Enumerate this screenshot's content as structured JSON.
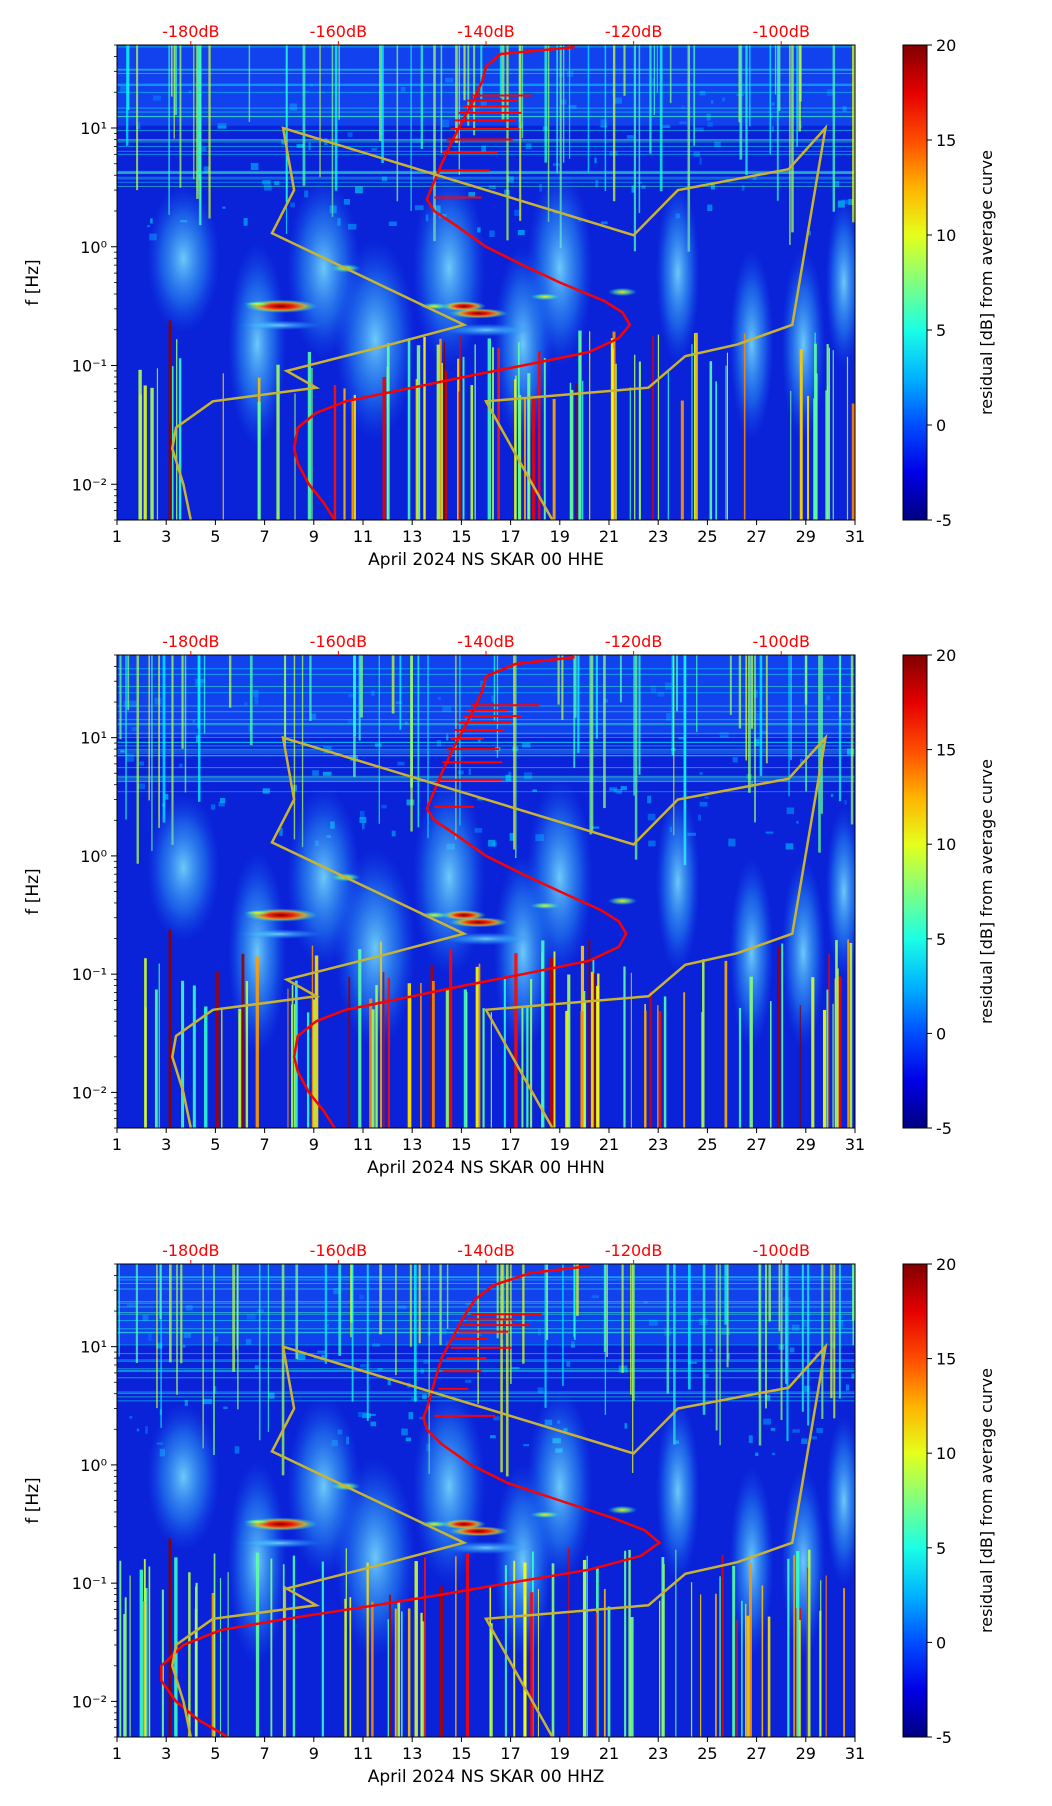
{
  "chart_data": [
    {
      "type": "heatmap",
      "panel": "top",
      "title": "",
      "xlabel": "April 2024 NS SKAR 00 HHE",
      "ylabel": "f [Hz]",
      "x_ticks": [
        1,
        3,
        5,
        7,
        9,
        11,
        13,
        15,
        17,
        19,
        21,
        23,
        25,
        27,
        29,
        31
      ],
      "x_range": [
        1,
        31
      ],
      "y_scale": "log",
      "y_range": [
        0.005,
        50
      ],
      "y_ticks": [
        {
          "value": 0.01,
          "label": "10⁻²"
        },
        {
          "value": 0.1,
          "label": "10⁻¹"
        },
        {
          "value": 1,
          "label": "10⁰"
        },
        {
          "value": 10,
          "label": "10¹"
        }
      ],
      "top_axis": {
        "color": "#ff0000",
        "range_db": [
          -190,
          -90
        ],
        "ticks": [
          {
            "value": -180,
            "label": "-180dB"
          },
          {
            "value": -160,
            "label": "-160dB"
          },
          {
            "value": -140,
            "label": "-140dB"
          },
          {
            "value": -120,
            "label": "-120dB"
          },
          {
            "value": -100,
            "label": "-100dB"
          }
        ]
      },
      "colorbar": {
        "label": "residual [dB] from average curve",
        "range": [
          -5,
          20
        ],
        "ticks": [
          -5,
          0,
          5,
          10,
          15,
          20
        ],
        "colormap": "jet"
      },
      "series": [
        {
          "name": "average PSD curve",
          "color": "#ff0000",
          "units": "dB",
          "points": [
            {
              "f": 0.005,
              "db": -160.5
            },
            {
              "f": 0.007,
              "db": -162
            },
            {
              "f": 0.01,
              "db": -164
            },
            {
              "f": 0.015,
              "db": -165.5
            },
            {
              "f": 0.02,
              "db": -166
            },
            {
              "f": 0.03,
              "db": -165.5
            },
            {
              "f": 0.04,
              "db": -163
            },
            {
              "f": 0.05,
              "db": -159
            },
            {
              "f": 0.065,
              "db": -150
            },
            {
              "f": 0.08,
              "db": -143
            },
            {
              "f": 0.1,
              "db": -135
            },
            {
              "f": 0.13,
              "db": -126
            },
            {
              "f": 0.17,
              "db": -122
            },
            {
              "f": 0.22,
              "db": -120.5
            },
            {
              "f": 0.28,
              "db": -121.5
            },
            {
              "f": 0.35,
              "db": -124
            },
            {
              "f": 0.5,
              "db": -130
            },
            {
              "f": 0.7,
              "db": -135
            },
            {
              "f": 1.0,
              "db": -140
            },
            {
              "f": 1.5,
              "db": -144
            },
            {
              "f": 2.0,
              "db": -147
            },
            {
              "f": 2.5,
              "db": -148
            },
            {
              "f": 3.0,
              "db": -147.5
            },
            {
              "f": 5.0,
              "db": -146
            },
            {
              "f": 8.0,
              "db": -144.5
            },
            {
              "f": 12,
              "db": -143
            },
            {
              "f": 18,
              "db": -141.5
            },
            {
              "f": 25,
              "db": -140.5
            },
            {
              "f": 33,
              "db": -140
            },
            {
              "f": 42,
              "db": -138
            },
            {
              "f": 48,
              "db": -128
            }
          ]
        },
        {
          "name": "NLNM / NHNM envelope",
          "color": "#c8b432",
          "units": "dB",
          "points": [
            {
              "f": 0.005,
              "db": -180
            },
            {
              "f": 0.01,
              "db": -181
            },
            {
              "f": 0.02,
              "db": -182.5
            },
            {
              "f": 0.03,
              "db": -182
            },
            {
              "f": 0.05,
              "db": -177
            },
            {
              "f": 0.065,
              "db": -163
            },
            {
              "f": 0.09,
              "db": -167
            },
            {
              "f": 0.15,
              "db": -153
            },
            {
              "f": 0.22,
              "db": -143
            },
            {
              "f": 0.5,
              "db": -155
            },
            {
              "f": 1.3,
              "db": -169
            },
            {
              "f": 3,
              "db": -166
            },
            {
              "f": 10,
              "db": -167.5
            },
            {
              "f": 1.25,
              "db": -120
            },
            {
              "f": 3,
              "db": -114
            },
            {
              "f": 4.5,
              "db": -99
            },
            {
              "f": 10,
              "db": -94
            },
            {
              "f": 0.22,
              "db": -98.5
            },
            {
              "f": 0.15,
              "db": -106
            },
            {
              "f": 0.12,
              "db": -113
            },
            {
              "f": 0.065,
              "db": -118
            },
            {
              "f": 0.05,
              "db": -140
            },
            {
              "f": 0.005,
              "db": -131
            }
          ]
        }
      ]
    },
    {
      "type": "heatmap",
      "panel": "middle",
      "title": "",
      "xlabel": "April 2024 NS SKAR 00 HHN",
      "ylabel": "f [Hz]",
      "x_ticks": [
        1,
        3,
        5,
        7,
        9,
        11,
        13,
        15,
        17,
        19,
        21,
        23,
        25,
        27,
        29,
        31
      ],
      "x_range": [
        1,
        31
      ],
      "y_scale": "log",
      "y_range": [
        0.005,
        50
      ],
      "y_ticks": [
        {
          "value": 0.01,
          "label": "10⁻²"
        },
        {
          "value": 0.1,
          "label": "10⁻¹"
        },
        {
          "value": 1,
          "label": "10⁰"
        },
        {
          "value": 10,
          "label": "10¹"
        }
      ],
      "top_axis": {
        "color": "#ff0000",
        "range_db": [
          -190,
          -90
        ],
        "ticks": [
          {
            "value": -180,
            "label": "-180dB"
          },
          {
            "value": -160,
            "label": "-160dB"
          },
          {
            "value": -140,
            "label": "-140dB"
          },
          {
            "value": -120,
            "label": "-120dB"
          },
          {
            "value": -100,
            "label": "-100dB"
          }
        ]
      },
      "colorbar": {
        "label": "residual [dB] from average curve",
        "range": [
          -5,
          20
        ],
        "ticks": [
          -5,
          0,
          5,
          10,
          15,
          20
        ],
        "colormap": "jet"
      },
      "series": [
        {
          "name": "average PSD curve",
          "color": "#ff0000",
          "units": "dB",
          "points": [
            {
              "f": 0.005,
              "db": -160.5
            },
            {
              "f": 0.007,
              "db": -162
            },
            {
              "f": 0.01,
              "db": -164
            },
            {
              "f": 0.015,
              "db": -165.5
            },
            {
              "f": 0.02,
              "db": -166
            },
            {
              "f": 0.03,
              "db": -165.5
            },
            {
              "f": 0.04,
              "db": -163
            },
            {
              "f": 0.05,
              "db": -159
            },
            {
              "f": 0.065,
              "db": -150
            },
            {
              "f": 0.08,
              "db": -143
            },
            {
              "f": 0.1,
              "db": -135
            },
            {
              "f": 0.13,
              "db": -126
            },
            {
              "f": 0.17,
              "db": -122
            },
            {
              "f": 0.22,
              "db": -121
            },
            {
              "f": 0.28,
              "db": -122
            },
            {
              "f": 0.35,
              "db": -124.5
            },
            {
              "f": 0.5,
              "db": -130
            },
            {
              "f": 0.7,
              "db": -135
            },
            {
              "f": 1.0,
              "db": -140
            },
            {
              "f": 1.5,
              "db": -144
            },
            {
              "f": 2.0,
              "db": -147
            },
            {
              "f": 2.5,
              "db": -148
            },
            {
              "f": 3.0,
              "db": -147.5
            },
            {
              "f": 5.0,
              "db": -146
            },
            {
              "f": 8.0,
              "db": -144.5
            },
            {
              "f": 12,
              "db": -143
            },
            {
              "f": 18,
              "db": -141.5
            },
            {
              "f": 25,
              "db": -140.5
            },
            {
              "f": 33,
              "db": -140
            },
            {
              "f": 42,
              "db": -136
            },
            {
              "f": 48,
              "db": -128
            }
          ]
        },
        {
          "name": "NLNM / NHNM envelope",
          "color": "#c8b432",
          "units": "dB",
          "points": [
            {
              "f": 0.005,
              "db": -180
            },
            {
              "f": 0.01,
              "db": -181
            },
            {
              "f": 0.02,
              "db": -182.5
            },
            {
              "f": 0.03,
              "db": -182
            },
            {
              "f": 0.05,
              "db": -177
            },
            {
              "f": 0.065,
              "db": -163
            },
            {
              "f": 0.09,
              "db": -167
            },
            {
              "f": 0.15,
              "db": -153
            },
            {
              "f": 0.22,
              "db": -143
            },
            {
              "f": 0.5,
              "db": -155
            },
            {
              "f": 1.3,
              "db": -169
            },
            {
              "f": 3,
              "db": -166
            },
            {
              "f": 10,
              "db": -167.5
            },
            {
              "f": 1.25,
              "db": -120
            },
            {
              "f": 3,
              "db": -114
            },
            {
              "f": 4.5,
              "db": -99
            },
            {
              "f": 10,
              "db": -94
            },
            {
              "f": 0.22,
              "db": -98.5
            },
            {
              "f": 0.15,
              "db": -106
            },
            {
              "f": 0.12,
              "db": -113
            },
            {
              "f": 0.065,
              "db": -118
            },
            {
              "f": 0.05,
              "db": -140
            },
            {
              "f": 0.005,
              "db": -131
            }
          ]
        }
      ]
    },
    {
      "type": "heatmap",
      "panel": "bottom",
      "title": "",
      "xlabel": "April 2024 NS SKAR 00 HHZ",
      "ylabel": "f [Hz]",
      "x_ticks": [
        1,
        3,
        5,
        7,
        9,
        11,
        13,
        15,
        17,
        19,
        21,
        23,
        25,
        27,
        29,
        31
      ],
      "x_range": [
        1,
        31
      ],
      "y_scale": "log",
      "y_range": [
        0.005,
        50
      ],
      "y_ticks": [
        {
          "value": 0.01,
          "label": "10⁻²"
        },
        {
          "value": 0.1,
          "label": "10⁻¹"
        },
        {
          "value": 1,
          "label": "10⁰"
        },
        {
          "value": 10,
          "label": "10¹"
        }
      ],
      "top_axis": {
        "color": "#ff0000",
        "range_db": [
          -190,
          -90
        ],
        "ticks": [
          {
            "value": -180,
            "label": "-180dB"
          },
          {
            "value": -160,
            "label": "-160dB"
          },
          {
            "value": -140,
            "label": "-140dB"
          },
          {
            "value": -120,
            "label": "-120dB"
          },
          {
            "value": -100,
            "label": "-100dB"
          }
        ]
      },
      "colorbar": {
        "label": "residual [dB] from average curve",
        "range": [
          -5,
          20
        ],
        "ticks": [
          -5,
          0,
          5,
          10,
          15,
          20
        ],
        "colormap": "jet"
      },
      "series": [
        {
          "name": "average PSD curve",
          "color": "#ff0000",
          "units": "dB",
          "points": [
            {
              "f": 0.005,
              "db": -175
            },
            {
              "f": 0.007,
              "db": -179
            },
            {
              "f": 0.01,
              "db": -182
            },
            {
              "f": 0.015,
              "db": -184
            },
            {
              "f": 0.02,
              "db": -184
            },
            {
              "f": 0.03,
              "db": -181
            },
            {
              "f": 0.04,
              "db": -176
            },
            {
              "f": 0.05,
              "db": -167
            },
            {
              "f": 0.065,
              "db": -155
            },
            {
              "f": 0.08,
              "db": -146
            },
            {
              "f": 0.1,
              "db": -137
            },
            {
              "f": 0.13,
              "db": -126
            },
            {
              "f": 0.17,
              "db": -119
            },
            {
              "f": 0.22,
              "db": -116.5
            },
            {
              "f": 0.28,
              "db": -118.5
            },
            {
              "f": 0.35,
              "db": -122.5
            },
            {
              "f": 0.5,
              "db": -130
            },
            {
              "f": 0.7,
              "db": -137
            },
            {
              "f": 1.0,
              "db": -142
            },
            {
              "f": 1.5,
              "db": -146
            },
            {
              "f": 2.0,
              "db": -148
            },
            {
              "f": 2.5,
              "db": -148.5
            },
            {
              "f": 3.0,
              "db": -148
            },
            {
              "f": 5.0,
              "db": -147
            },
            {
              "f": 8.0,
              "db": -146
            },
            {
              "f": 12,
              "db": -144.5
            },
            {
              "f": 18,
              "db": -143
            },
            {
              "f": 25,
              "db": -141.5
            },
            {
              "f": 33,
              "db": -139
            },
            {
              "f": 42,
              "db": -134
            },
            {
              "f": 48,
              "db": -126
            }
          ]
        },
        {
          "name": "NLNM / NHNM envelope",
          "color": "#c8b432",
          "units": "dB",
          "points": [
            {
              "f": 0.005,
              "db": -180
            },
            {
              "f": 0.01,
              "db": -181
            },
            {
              "f": 0.02,
              "db": -182.5
            },
            {
              "f": 0.03,
              "db": -182
            },
            {
              "f": 0.05,
              "db": -177
            },
            {
              "f": 0.065,
              "db": -163
            },
            {
              "f": 0.09,
              "db": -167
            },
            {
              "f": 0.15,
              "db": -153
            },
            {
              "f": 0.22,
              "db": -143
            },
            {
              "f": 0.5,
              "db": -155
            },
            {
              "f": 1.3,
              "db": -169
            },
            {
              "f": 3,
              "db": -166
            },
            {
              "f": 10,
              "db": -167.5
            },
            {
              "f": 1.25,
              "db": -120
            },
            {
              "f": 3,
              "db": -114
            },
            {
              "f": 4.5,
              "db": -99
            },
            {
              "f": 10,
              "db": -94
            },
            {
              "f": 0.22,
              "db": -98.5
            },
            {
              "f": 0.15,
              "db": -106
            },
            {
              "f": 0.12,
              "db": -113
            },
            {
              "f": 0.065,
              "db": -118
            },
            {
              "f": 0.05,
              "db": -140
            },
            {
              "f": 0.005,
              "db": -131
            }
          ]
        }
      ]
    }
  ]
}
